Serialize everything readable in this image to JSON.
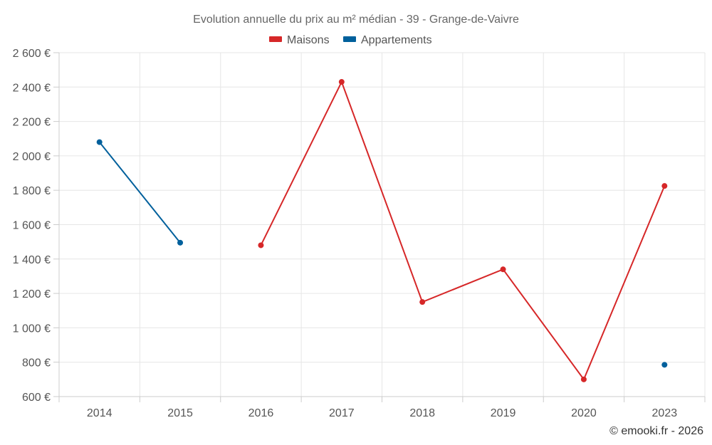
{
  "chart_data": {
    "type": "line",
    "title": "Evolution annuelle du prix au m² médian - 39 - Grange-de-Vaivre",
    "categories": [
      "2014",
      "2015",
      "2016",
      "2017",
      "2018",
      "2019",
      "2020",
      "2023"
    ],
    "ylim": [
      600,
      2600
    ],
    "yticks": [
      600,
      800,
      1000,
      1200,
      1400,
      1600,
      1800,
      2000,
      2200,
      2400,
      2600
    ],
    "ytick_labels": [
      "600 €",
      "800 €",
      "1 000 €",
      "1 200 €",
      "1 400 €",
      "1 600 €",
      "1 800 €",
      "2 000 €",
      "2 200 €",
      "2 400 €",
      "2 600 €"
    ],
    "grid": true,
    "legend_position": "top-center",
    "series": [
      {
        "name": "Maisons",
        "color": "#d62728",
        "values": [
          null,
          null,
          1480,
          2430,
          1150,
          1340,
          700,
          1825
        ]
      },
      {
        "name": "Appartements",
        "color": "#00609c",
        "values": [
          2080,
          1495,
          null,
          null,
          null,
          null,
          null,
          785
        ]
      }
    ]
  },
  "credit": "© emooki.fr - 2026"
}
